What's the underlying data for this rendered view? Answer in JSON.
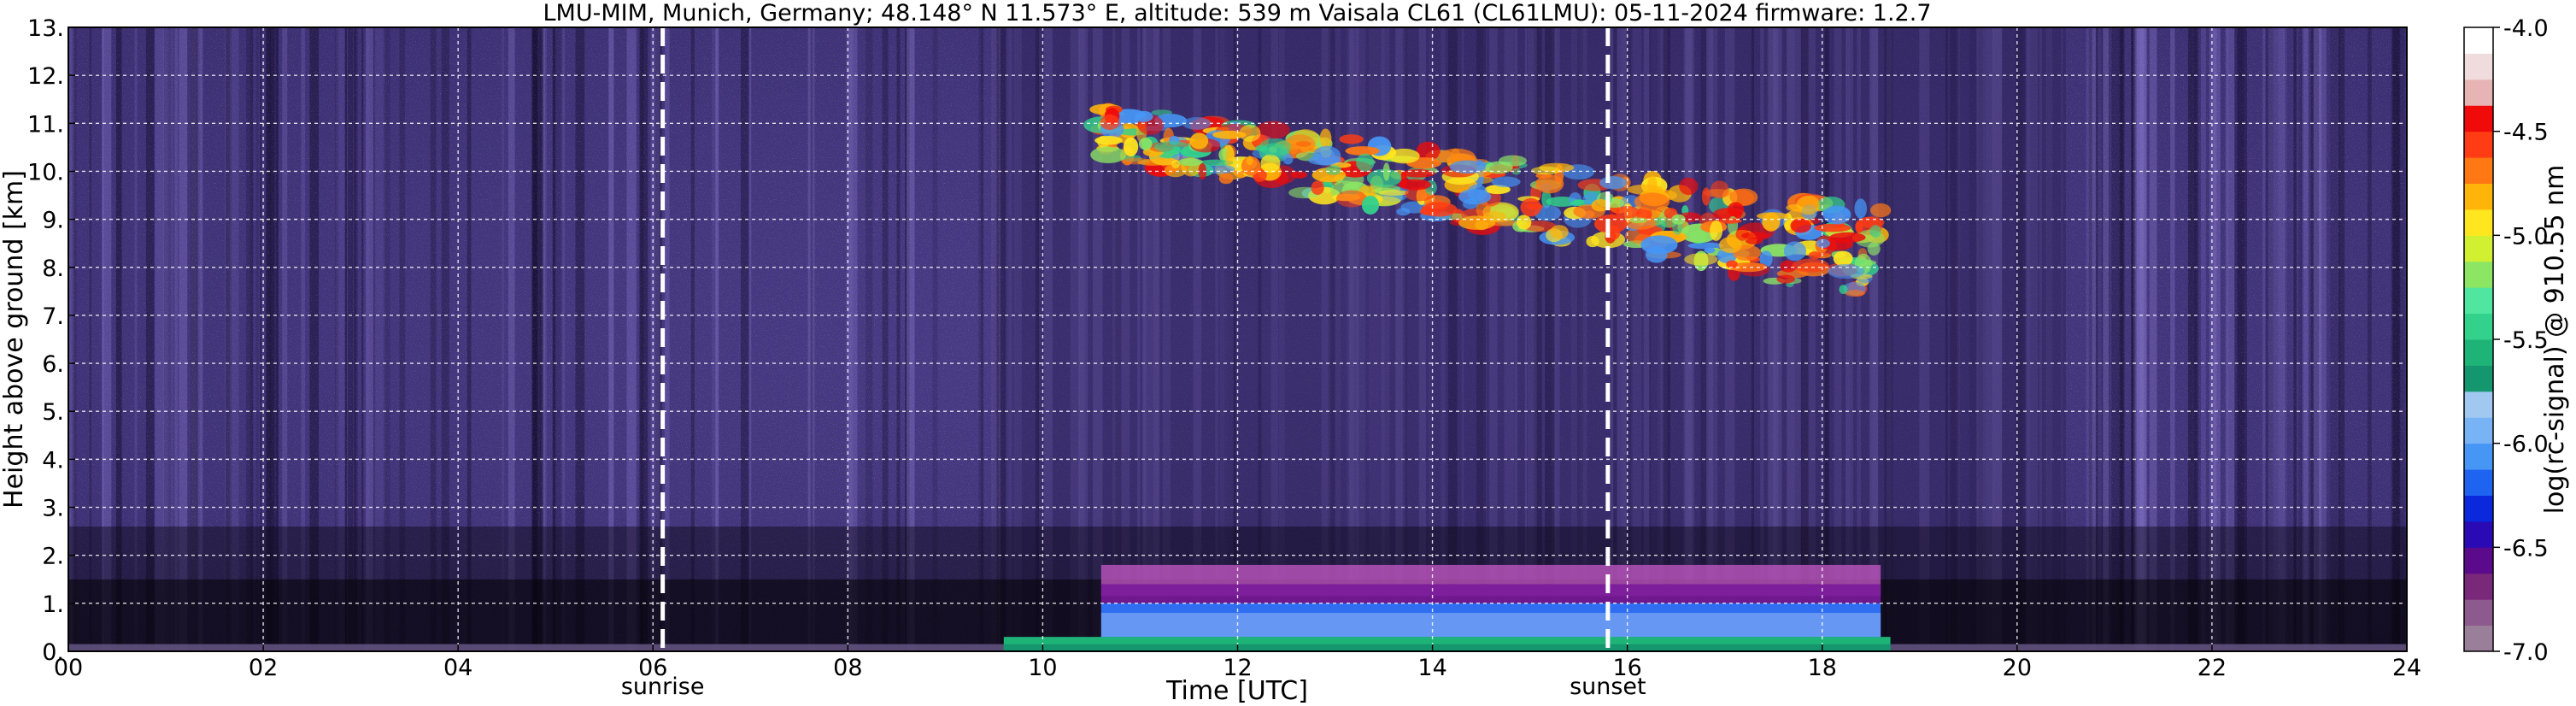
{
  "chart_data": {
    "type": "heatmap",
    "title": "LMU-MIM, Munich, Germany; 48.148° N 11.573° E, altitude: 539 m    Vaisala CL61 (CL61LMU): 05-11-2024    firmware: 1.2.7",
    "xlabel": "Time [UTC]",
    "ylabel": "Height above ground [km]",
    "xlim": [
      0,
      24
    ],
    "ylim": [
      0,
      13
    ],
    "x_ticks": [
      "00",
      "02",
      "04",
      "06",
      "08",
      "10",
      "12",
      "14",
      "16",
      "18",
      "20",
      "22",
      "24"
    ],
    "x_tick_values": [
      0,
      2,
      4,
      6,
      8,
      10,
      12,
      14,
      16,
      18,
      20,
      22,
      24
    ],
    "y_ticks": [
      "0.",
      "1.",
      "2.",
      "3.",
      "4.",
      "5.",
      "6.",
      "7.",
      "8.",
      "9.",
      "10.",
      "11.",
      "12.",
      "13."
    ],
    "y_tick_values": [
      0,
      1,
      2,
      3,
      4,
      5,
      6,
      7,
      8,
      9,
      10,
      11,
      12,
      13
    ],
    "grid": true,
    "colorbar": {
      "label": "log(rc-signal) @ 910.55 nm",
      "range": [
        -7.0,
        -4.0
      ],
      "ticks": [
        "-4.0",
        "-4.5",
        "-5.0",
        "-5.5",
        "-6.0",
        "-6.5",
        "-7.0"
      ],
      "tick_values": [
        -4.0,
        -4.5,
        -5.0,
        -5.5,
        -6.0,
        -6.5,
        -7.0
      ],
      "colors": [
        "#9a7f9a",
        "#8c5a8c",
        "#7a287a",
        "#5a0a8a",
        "#2a0ab4",
        "#0a28dc",
        "#1e64f0",
        "#4696f5",
        "#78b4f5",
        "#a0c8f0",
        "#14966e",
        "#1eb478",
        "#32d28c",
        "#50e6a0",
        "#8ce664",
        "#d2f032",
        "#ffe61e",
        "#ffb40a",
        "#ff7814",
        "#ff3c14",
        "#f00a0a",
        "#e6b4b4",
        "#f0dcdc",
        "#ffffff"
      ]
    },
    "markers": [
      {
        "label": "sunrise",
        "x": 6.1
      },
      {
        "label": "sunset",
        "x": 15.8
      }
    ],
    "features": [
      {
        "kind": "cirrus cloud layer",
        "x_start": 10.6,
        "x_end": 18.6,
        "height_range_km": [
          7.0,
          11.5
        ]
      },
      {
        "kind": "boundary layer aerosol",
        "x_start": 9.6,
        "x_end": 18.7,
        "height_range_km": [
          0.0,
          1.8
        ]
      }
    ]
  }
}
